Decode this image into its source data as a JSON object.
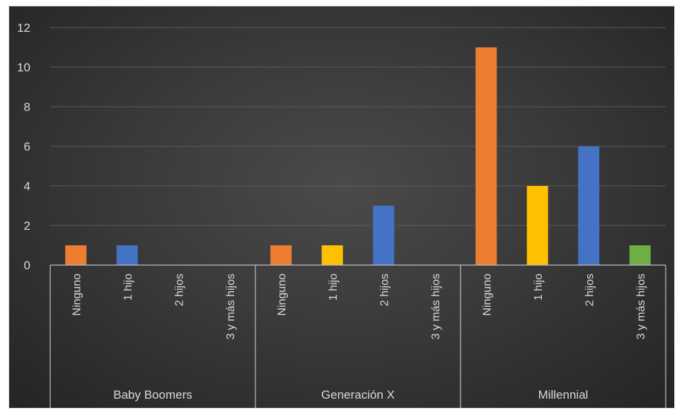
{
  "chart_data": {
    "type": "bar",
    "title": "",
    "xlabel": "",
    "ylabel": "",
    "ylim": [
      0,
      12
    ],
    "yticks": [
      "0",
      "2",
      "4",
      "6",
      "8",
      "10",
      "12"
    ],
    "grid": true,
    "legend": "none",
    "groups": [
      {
        "name": "Baby Boomers",
        "categories": [
          "Ninguno",
          "1 hijo",
          "2 hijos",
          "3 y más hijos"
        ],
        "values": [
          1,
          1,
          0,
          0
        ]
      },
      {
        "name": "Generación X",
        "categories": [
          "Ninguno",
          "1 hijo",
          "2 hijos",
          "3 y más hijos"
        ],
        "values": [
          1,
          1,
          3,
          0
        ]
      },
      {
        "name": "Millennial",
        "categories": [
          "Ninguno",
          "1 hijo",
          "2 hijos",
          "3 y más hijos"
        ],
        "values": [
          11,
          4,
          6,
          1
        ]
      }
    ],
    "colors": {
      "background": "#3a3a3a",
      "gridline": "#5a5a5a",
      "axis": "#bfbfbf",
      "text": "#d9d9d9"
    },
    "bar_colors": [
      [
        "#ed7d31",
        "#4472c4",
        "#4472c4",
        "#70ad47"
      ],
      [
        "#ed7d31",
        "#ffc000",
        "#4472c4",
        "#70ad47"
      ],
      [
        "#ed7d31",
        "#ffc000",
        "#4472c4",
        "#70ad47"
      ]
    ]
  }
}
